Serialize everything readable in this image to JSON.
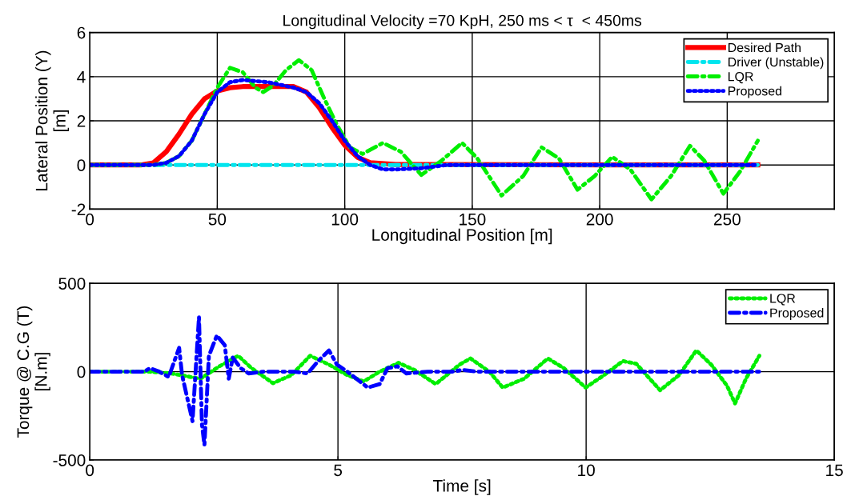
{
  "chart_data": [
    {
      "type": "line",
      "title": "Longitudinal Velocity =70 KpH, 250 ms < τ  < 450ms",
      "xlabel": "Longitudinal Position [m]",
      "ylabel": "Lateral Position (Y)\n[m]",
      "xlim": [
        0,
        292
      ],
      "xticks": [
        0,
        50,
        100,
        150,
        200,
        250
      ],
      "ylim": [
        -2,
        6
      ],
      "yticks": [
        -2,
        0,
        2,
        4,
        6
      ],
      "grid": true,
      "legend": "top right",
      "series": [
        {
          "name": "Desired Path",
          "color": "#ff0000",
          "line_style": "solid",
          "x": [
            0,
            20,
            25,
            30,
            35,
            40,
            45,
            50,
            55,
            60,
            80,
            85,
            90,
            95,
            100,
            105,
            110,
            120,
            262
          ],
          "values": [
            0,
            0,
            0.1,
            0.6,
            1.4,
            2.3,
            3.0,
            3.35,
            3.5,
            3.55,
            3.55,
            3.3,
            2.6,
            1.7,
            0.9,
            0.35,
            0.1,
            0.02,
            0
          ]
        },
        {
          "name": "Driver (Unstable)",
          "color": "#00e5ee",
          "line_style": "dashdot",
          "x": [
            0,
            262
          ],
          "values": [
            0,
            0
          ]
        },
        {
          "name": "LQR",
          "color": "#00ee00",
          "line_style": "dashdot",
          "x": [
            0,
            25,
            30,
            35,
            40,
            45,
            50,
            55,
            60,
            65,
            68,
            72,
            77,
            82,
            87,
            92,
            97,
            102,
            107,
            115,
            122,
            130,
            138,
            146,
            152,
            161.5,
            170,
            177.2,
            184,
            191.3,
            198,
            204.9,
            212,
            220.3,
            228,
            235.4,
            241,
            248.5,
            255,
            262
          ],
          "values": [
            0,
            0,
            0.1,
            0.4,
            1.1,
            2.3,
            3.5,
            4.4,
            4.2,
            3.5,
            3.3,
            3.6,
            4.3,
            4.75,
            4.3,
            3.0,
            1.8,
            0.8,
            0.5,
            1.0,
            0.6,
            -0.45,
            0.2,
            1.0,
            0.3,
            -1.38,
            -0.5,
            0.8,
            0.3,
            -1.12,
            -0.5,
            0.37,
            -0.2,
            -1.56,
            -0.5,
            0.87,
            0.2,
            -1.3,
            -0.3,
            1.1
          ]
        },
        {
          "name": "Proposed",
          "color": "#0000ff",
          "line_style": "dotted",
          "x": [
            0,
            25,
            30,
            35,
            40,
            45,
            50,
            55,
            60,
            70,
            80,
            85,
            90,
            95,
            100,
            105,
            110,
            115,
            120,
            130,
            140,
            262
          ],
          "values": [
            0,
            0,
            0.1,
            0.4,
            1.1,
            2.3,
            3.3,
            3.75,
            3.85,
            3.75,
            3.5,
            3.3,
            2.8,
            2.0,
            1.1,
            0.4,
            0.0,
            -0.2,
            -0.2,
            -0.15,
            0,
            0
          ]
        }
      ]
    },
    {
      "type": "line",
      "xlabel": "Time [s]",
      "ylabel": "Torque @ C.G (T)\n[N.m]",
      "xlim": [
        0,
        15
      ],
      "xticks": [
        0,
        5,
        10,
        15
      ],
      "ylim": [
        -500,
        500
      ],
      "yticks": [
        -500,
        0,
        500
      ],
      "grid": true,
      "legend": "top right",
      "series": [
        {
          "name": "LQR",
          "color": "#00ee00",
          "line_style": "dotted",
          "x": [
            0,
            1.2,
            1.64,
            2.23,
            2.61,
            2.99,
            3.26,
            3.69,
            4.06,
            4.44,
            4.82,
            5.19,
            5.52,
            5.84,
            6.22,
            6.54,
            6.97,
            7.45,
            7.67,
            8.05,
            8.32,
            8.75,
            9.23,
            9.55,
            9.99,
            10.36,
            10.74,
            11.01,
            11.49,
            11.87,
            12.22,
            12.52,
            12.84,
            13.0,
            13.22,
            13.49
          ],
          "values": [
            0,
            0,
            -10,
            -40,
            30,
            90,
            20,
            -65,
            -20,
            90,
            40,
            -20,
            -55,
            0,
            50,
            10,
            -70,
            40,
            75,
            0,
            -90,
            -40,
            75,
            20,
            -90,
            -20,
            60,
            45,
            -105,
            -20,
            120,
            40,
            -80,
            -180,
            -40,
            90
          ]
        },
        {
          "name": "Proposed",
          "color": "#0000ff",
          "line_style": "dashdot",
          "x": [
            0,
            1.1,
            1.21,
            1.4,
            1.59,
            1.8,
            1.86,
            2.07,
            2.2,
            2.26,
            2.31,
            2.4,
            2.56,
            2.72,
            2.8,
            2.88,
            3.04,
            3.2,
            3.5,
            4.12,
            4.39,
            4.6,
            4.82,
            4.98,
            5.19,
            5.6,
            5.84,
            6.0,
            6.2,
            6.38,
            6.81,
            7.3,
            7.51,
            7.8,
            13.49
          ],
          "values": [
            0,
            0,
            20,
            0,
            -30,
            135,
            -20,
            -280,
            310,
            -300,
            -415,
            90,
            205,
            150,
            -40,
            80,
            20,
            -10,
            0,
            0,
            -10,
            60,
            120,
            40,
            0,
            -90,
            -70,
            20,
            30,
            -10,
            0,
            0,
            10,
            0,
            0
          ]
        }
      ]
    }
  ]
}
